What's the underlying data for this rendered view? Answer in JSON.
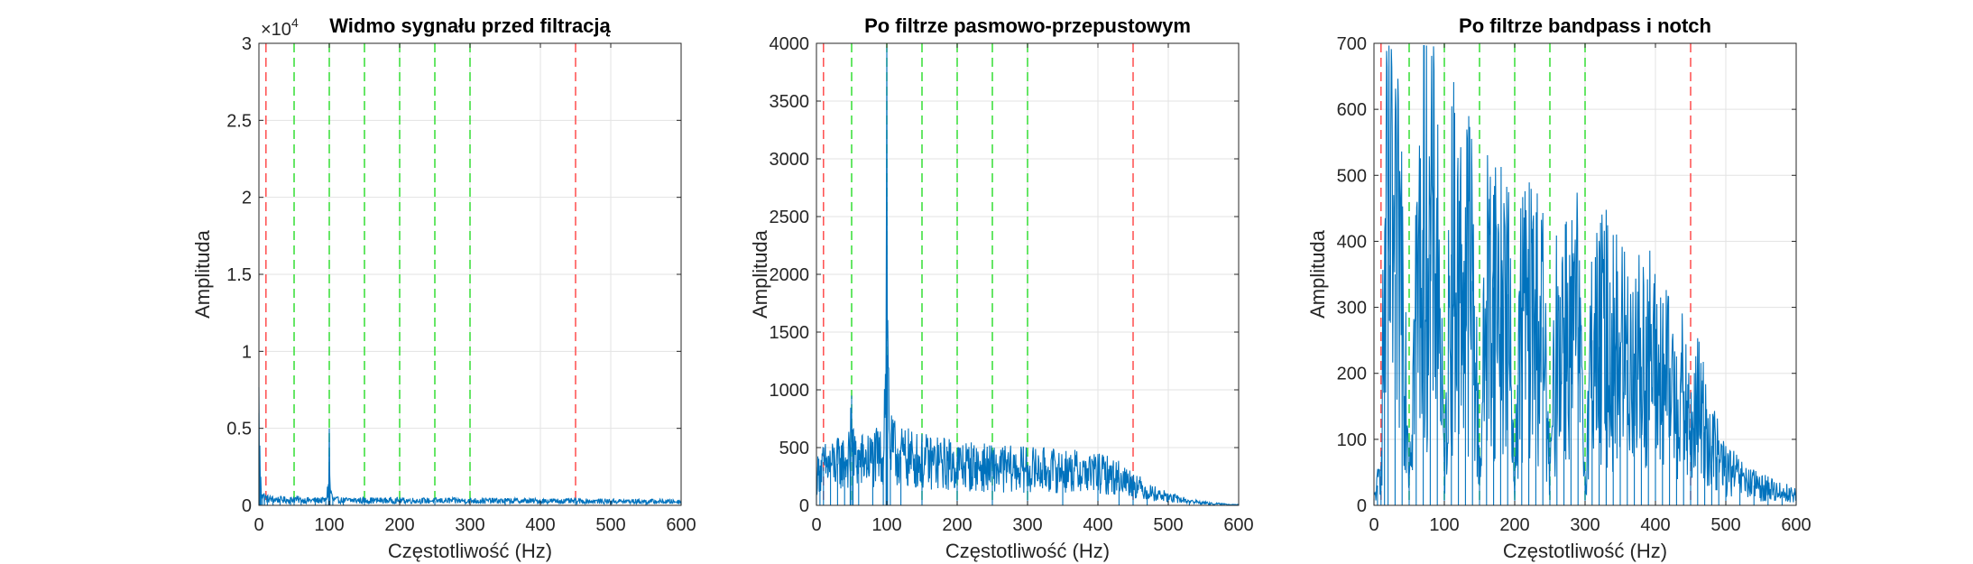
{
  "chart_data": [
    {
      "type": "line",
      "title": "Widmo sygnału przed filtracją",
      "xlabel": "Częstotliwość (Hz)",
      "ylabel": "Amplituda",
      "xlim": [
        0,
        600
      ],
      "ylim": [
        0,
        30000
      ],
      "xticks": [
        0,
        100,
        200,
        300,
        400,
        500,
        600
      ],
      "yticks": [
        0,
        5000,
        10000,
        15000,
        20000,
        25000,
        30000
      ],
      "ytick_labels": [
        "0",
        "0.5",
        "1",
        "1.5",
        "2",
        "2.5",
        "3"
      ],
      "y_exponent": "4",
      "y_exponent_base": "×10",
      "grid": true,
      "series": [
        {
          "color": "#0072BD",
          "x": [
            0,
            1,
            2,
            3,
            5,
            8,
            12,
            20,
            30,
            45,
            50,
            60,
            80,
            95,
            99,
            100,
            101,
            105,
            120,
            150,
            200,
            250,
            300,
            350,
            400,
            450,
            500,
            550,
            600
          ],
          "y": [
            6000,
            3500,
            1800,
            1100,
            700,
            500,
            420,
            380,
            360,
            340,
            420,
            330,
            320,
            330,
            1200,
            3700,
            1100,
            350,
            320,
            320,
            310,
            300,
            300,
            290,
            280,
            270,
            260,
            250,
            240
          ]
        }
      ],
      "vlines": [
        {
          "x": 10,
          "color": "#FF4D4D"
        },
        {
          "x": 50,
          "color": "#33DD33"
        },
        {
          "x": 100,
          "color": "#33DD33"
        },
        {
          "x": 150,
          "color": "#33DD33"
        },
        {
          "x": 200,
          "color": "#33DD33"
        },
        {
          "x": 250,
          "color": "#33DD33"
        },
        {
          "x": 300,
          "color": "#33DD33"
        },
        {
          "x": 450,
          "color": "#FF4D4D"
        }
      ]
    },
    {
      "type": "line",
      "title": "Po filtrze pasmowo-przepustowym",
      "xlabel": "Częstotliwość (Hz)",
      "ylabel": "Amplituda",
      "xlim": [
        0,
        600
      ],
      "ylim": [
        0,
        4000
      ],
      "xticks": [
        0,
        100,
        200,
        300,
        400,
        500,
        600
      ],
      "yticks": [
        0,
        500,
        1000,
        1500,
        2000,
        2500,
        3000,
        3500,
        4000
      ],
      "grid": true,
      "series": [
        {
          "color": "#0072BD",
          "x": [
            0,
            5,
            10,
            20,
            30,
            40,
            48,
            50,
            52,
            60,
            80,
            95,
            99,
            100,
            101,
            105,
            120,
            150,
            200,
            250,
            300,
            350,
            400,
            430,
            450,
            470,
            500,
            530,
            560,
            600
          ],
          "y": [
            250,
            300,
            330,
            350,
            360,
            380,
            400,
            950,
            420,
            380,
            400,
            420,
            1500,
            3550,
            1300,
            480,
            420,
            380,
            350,
            320,
            310,
            300,
            280,
            240,
            190,
            120,
            70,
            35,
            15,
            5
          ]
        }
      ],
      "vlines": [
        {
          "x": 10,
          "color": "#FF4D4D"
        },
        {
          "x": 50,
          "color": "#33DD33"
        },
        {
          "x": 100,
          "color": "#33DD33"
        },
        {
          "x": 150,
          "color": "#33DD33"
        },
        {
          "x": 200,
          "color": "#33DD33"
        },
        {
          "x": 250,
          "color": "#33DD33"
        },
        {
          "x": 300,
          "color": "#33DD33"
        },
        {
          "x": 450,
          "color": "#FF4D4D"
        }
      ]
    },
    {
      "type": "line",
      "title": "Po filtrze bandpass i notch",
      "xlabel": "Częstotliwość (Hz)",
      "ylabel": "Amplituda",
      "xlim": [
        0,
        600
      ],
      "ylim": [
        0,
        700
      ],
      "xticks": [
        0,
        100,
        200,
        300,
        400,
        500,
        600
      ],
      "yticks": [
        0,
        100,
        200,
        300,
        400,
        500,
        600,
        700
      ],
      "grid": true,
      "series": [
        {
          "color": "#0072BD",
          "x": [
            0,
            5,
            10,
            15,
            20,
            30,
            40,
            50,
            60,
            70,
            80,
            90,
            100,
            110,
            120,
            130,
            140,
            150,
            160,
            170,
            180,
            190,
            200,
            210,
            220,
            230,
            240,
            250,
            260,
            270,
            280,
            290,
            300,
            310,
            320,
            330,
            340,
            350,
            360,
            370,
            380,
            390,
            400,
            410,
            420,
            430,
            440,
            450,
            460,
            470,
            480,
            490,
            500,
            520,
            540,
            560,
            580,
            600
          ],
          "y": [
            10,
            30,
            60,
            330,
            420,
            350,
            380,
            60,
            300,
            420,
            380,
            400,
            40,
            380,
            330,
            360,
            340,
            50,
            310,
            330,
            300,
            320,
            40,
            300,
            280,
            290,
            270,
            40,
            260,
            280,
            250,
            270,
            40,
            250,
            240,
            260,
            230,
            240,
            220,
            230,
            210,
            230,
            200,
            190,
            180,
            170,
            160,
            100,
            150,
            120,
            90,
            70,
            55,
            40,
            30,
            25,
            20,
            15
          ]
        }
      ],
      "vlines": [
        {
          "x": 10,
          "color": "#FF4D4D"
        },
        {
          "x": 50,
          "color": "#33DD33"
        },
        {
          "x": 100,
          "color": "#33DD33"
        },
        {
          "x": 150,
          "color": "#33DD33"
        },
        {
          "x": 200,
          "color": "#33DD33"
        },
        {
          "x": 250,
          "color": "#33DD33"
        },
        {
          "x": 300,
          "color": "#33DD33"
        },
        {
          "x": 450,
          "color": "#FF4D4D"
        }
      ]
    }
  ]
}
